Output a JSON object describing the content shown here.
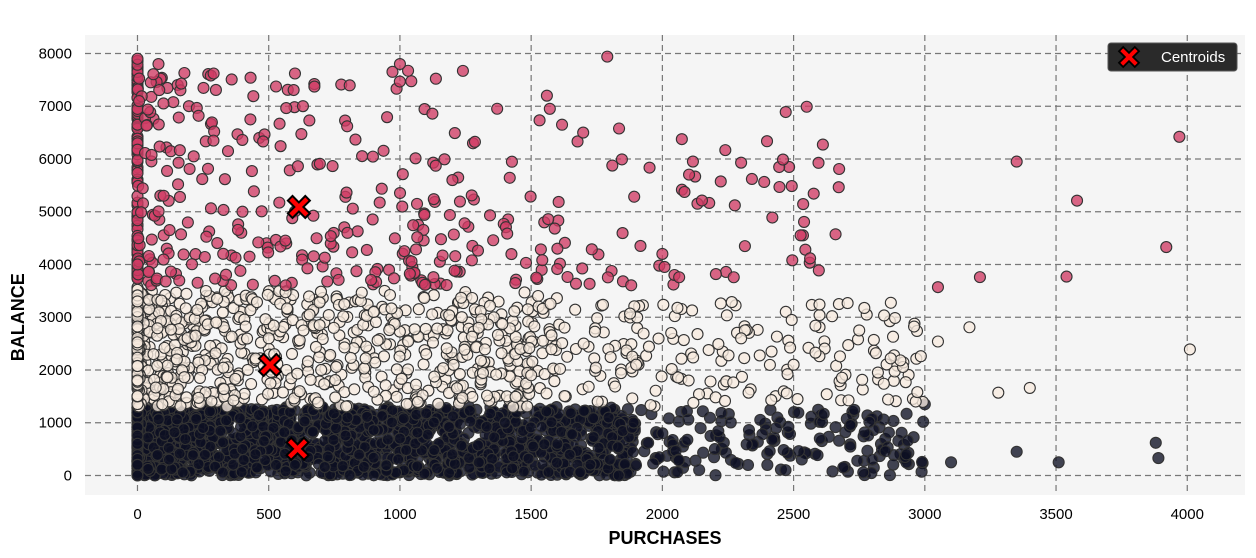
{
  "chart_data": {
    "type": "scatter",
    "title": "",
    "xlabel": "PURCHASES",
    "ylabel": "BALANCE",
    "xlim": [
      -200,
      4220
    ],
    "ylim": [
      -370,
      8350
    ],
    "xticks": [
      0,
      500,
      1000,
      1500,
      2000,
      2500,
      3000,
      3500,
      4000
    ],
    "yticks": [
      0,
      1000,
      2000,
      3000,
      4000,
      5000,
      6000,
      7000,
      8000
    ],
    "grid": true,
    "legend_position": "top-right",
    "background": "#f5f5f5",
    "series": [
      {
        "cluster": 0,
        "color": "#0d0f22",
        "approx_points": 3000,
        "sample_points": [
          [
            0,
            0
          ],
          [
            0,
            600
          ],
          [
            0,
            1200
          ],
          [
            120,
            300
          ],
          [
            250,
            900
          ],
          [
            400,
            500
          ],
          [
            600,
            200
          ],
          [
            800,
            1100
          ],
          [
            1000,
            700
          ],
          [
            1200,
            400
          ],
          [
            1400,
            1000
          ],
          [
            1600,
            600
          ],
          [
            1800,
            300
          ],
          [
            2000,
            800
          ],
          [
            2200,
            500
          ],
          [
            2400,
            200
          ],
          [
            2600,
            700
          ],
          [
            2800,
            300
          ],
          [
            2930,
            400
          ],
          [
            3000,
            1350
          ],
          [
            3100,
            250
          ],
          [
            3350,
            450
          ],
          [
            3510,
            250
          ],
          [
            3880,
            620
          ],
          [
            3890,
            330
          ]
        ]
      },
      {
        "cluster": 1,
        "color": "#f7eadf",
        "approx_points": 1500,
        "sample_points": [
          [
            0,
            1800
          ],
          [
            0,
            3300
          ],
          [
            150,
            2200
          ],
          [
            300,
            2900
          ],
          [
            500,
            2600
          ],
          [
            700,
            2000
          ],
          [
            900,
            3100
          ],
          [
            1100,
            2300
          ],
          [
            1300,
            2800
          ],
          [
            1500,
            1900
          ],
          [
            1700,
            2500
          ],
          [
            1900,
            2100
          ],
          [
            2100,
            1800
          ],
          [
            2300,
            2600
          ],
          [
            2500,
            2100
          ],
          [
            2750,
            2750
          ],
          [
            2870,
            2220
          ],
          [
            3050,
            2540
          ],
          [
            3170,
            2810
          ],
          [
            3280,
            1570
          ],
          [
            3400,
            1660
          ],
          [
            4010,
            2390
          ]
        ]
      },
      {
        "cluster": 2,
        "color": "#cf3b64",
        "approx_points": 700,
        "sample_points": [
          [
            0,
            4000
          ],
          [
            0,
            7900
          ],
          [
            80,
            7800
          ],
          [
            290,
            7620
          ],
          [
            600,
            7620
          ],
          [
            1000,
            7800
          ],
          [
            1240,
            7670
          ],
          [
            1560,
            7200
          ],
          [
            1790,
            7940
          ],
          [
            2550,
            6990
          ],
          [
            2470,
            6890
          ],
          [
            3350,
            5950
          ],
          [
            3580,
            5210
          ],
          [
            3920,
            4330
          ],
          [
            3970,
            6420
          ],
          [
            3540,
            3770
          ],
          [
            3210,
            3760
          ],
          [
            3050,
            3570
          ],
          [
            400,
            5000
          ],
          [
            800,
            4600
          ],
          [
            1200,
            5600
          ],
          [
            1600,
            4300
          ],
          [
            2000,
            4200
          ],
          [
            2300,
            5930
          ]
        ]
      }
    ],
    "centroids": [
      {
        "x": 615,
        "y": 5090
      },
      {
        "x": 505,
        "y": 2095
      },
      {
        "x": 610,
        "y": 505
      }
    ],
    "legend_entries": [
      {
        "label": "Centroids",
        "marker": "X",
        "color": "#ff0000"
      }
    ]
  }
}
